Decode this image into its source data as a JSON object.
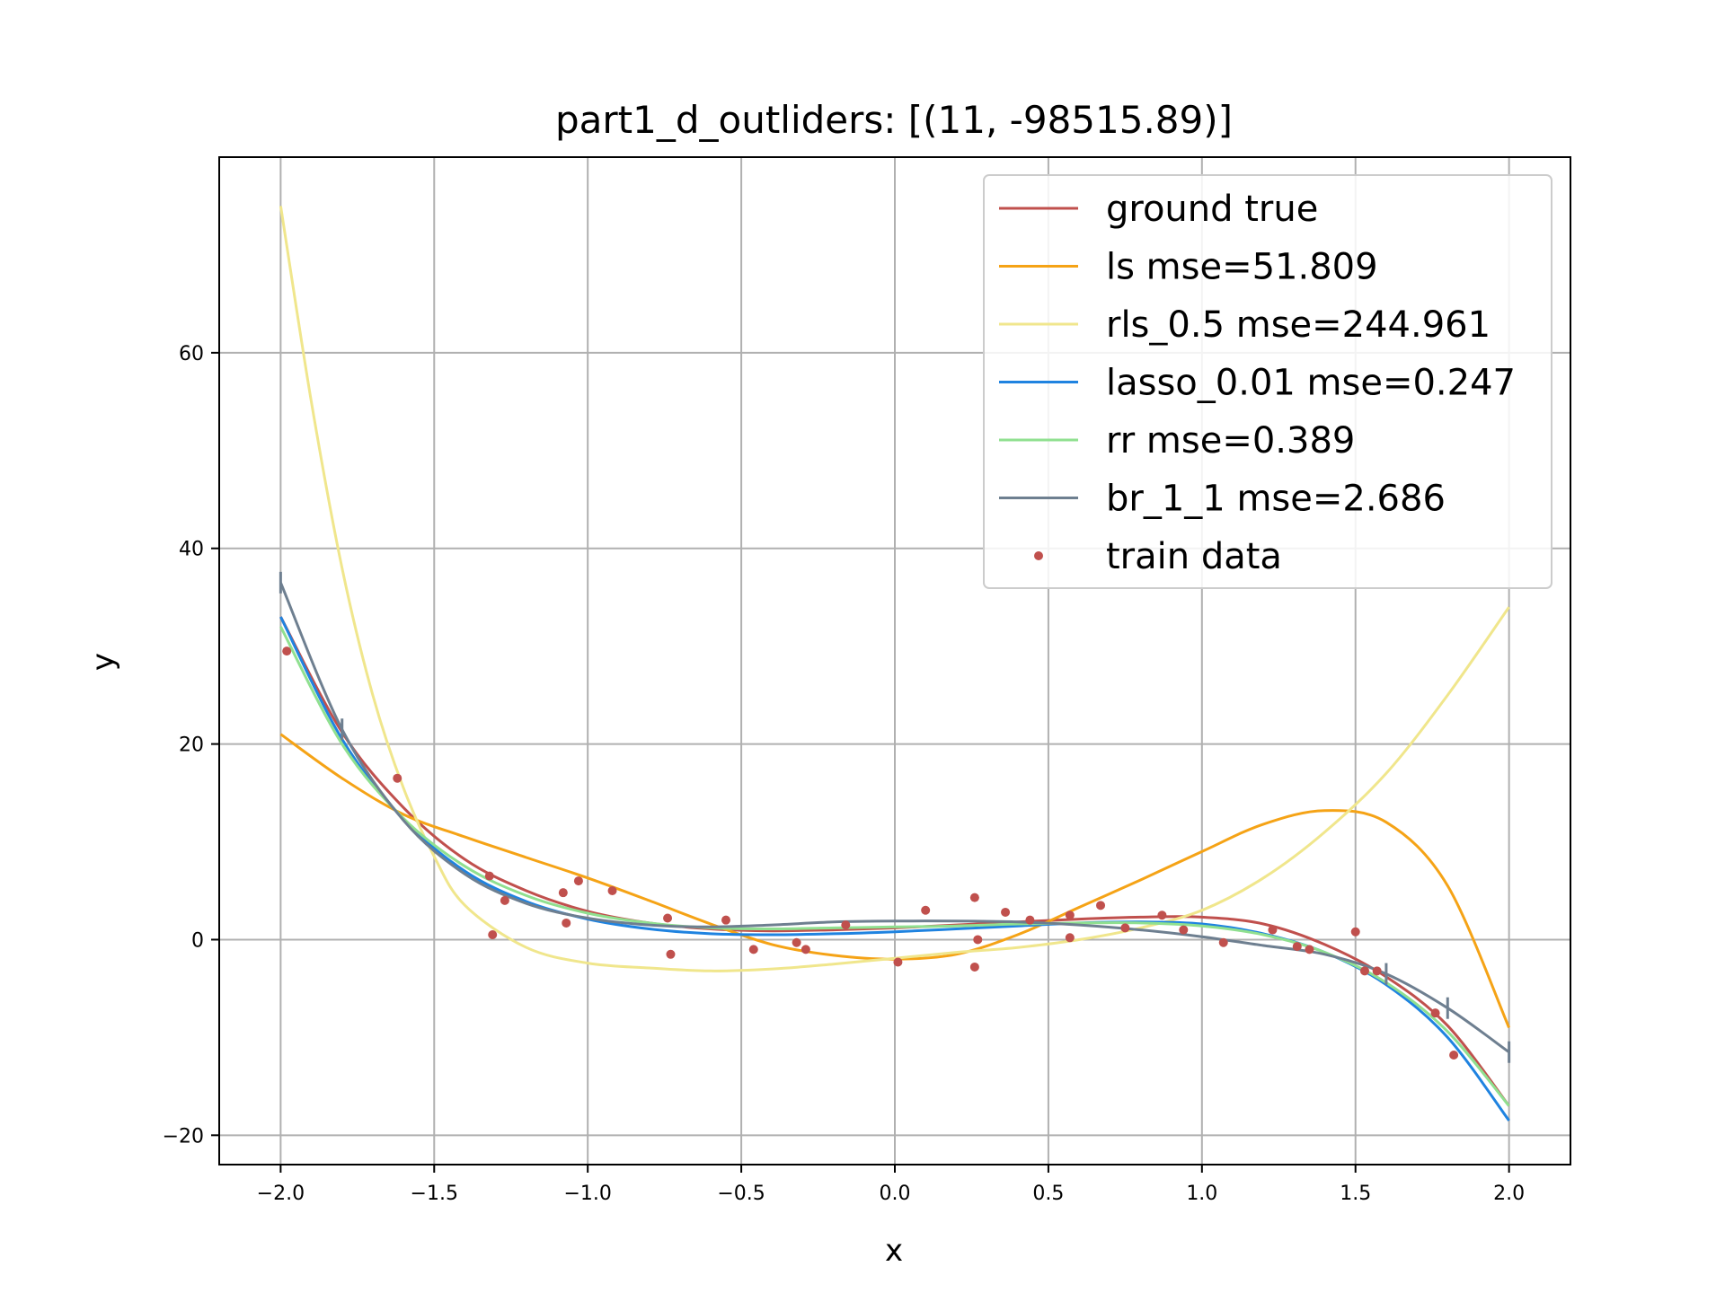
{
  "chart_data": {
    "type": "line",
    "title": "part1_d_outliders: [(11, -98515.89)]",
    "xlabel": "x",
    "ylabel": "y",
    "xlim": [
      -2.2,
      2.2
    ],
    "ylim": [
      -23,
      80
    ],
    "xticks": [
      -2.0,
      -1.5,
      -1.0,
      -0.5,
      0.0,
      0.5,
      1.0,
      1.5,
      2.0
    ],
    "xtick_labels": [
      "−2.0",
      "−1.5",
      "−1.0",
      "−0.5",
      "0.0",
      "0.5",
      "1.0",
      "1.5",
      "2.0"
    ],
    "yticks": [
      -20,
      0,
      20,
      40,
      60
    ],
    "ytick_labels": [
      "−20",
      "0",
      "20",
      "40",
      "60"
    ],
    "grid": true,
    "legend_position": "top-right",
    "series": [
      {
        "name": "ground true",
        "color": "#c0504d",
        "x": [
          -2.0,
          -1.8,
          -1.6,
          -1.4,
          -1.2,
          -1.0,
          -0.8,
          -0.6,
          -0.4,
          -0.2,
          0.0,
          0.2,
          0.4,
          0.6,
          0.8,
          1.0,
          1.2,
          1.4,
          1.6,
          1.8,
          2.0
        ],
        "y": [
          33.0,
          21.2,
          13.5,
          8.2,
          5.0,
          2.9,
          1.7,
          1.1,
          0.9,
          1.0,
          1.2,
          1.5,
          1.8,
          2.1,
          2.3,
          2.3,
          1.6,
          -0.5,
          -3.8,
          -8.8,
          -17.0
        ]
      },
      {
        "name": "ls mse=51.809",
        "color": "#f5a316",
        "x": [
          -2.0,
          -1.8,
          -1.6,
          -1.4,
          -1.2,
          -1.0,
          -0.8,
          -0.6,
          -0.4,
          -0.2,
          0.0,
          0.2,
          0.4,
          0.6,
          0.8,
          1.0,
          1.2,
          1.4,
          1.6,
          1.8,
          2.0
        ],
        "y": [
          21.0,
          16.5,
          12.8,
          10.5,
          8.4,
          6.3,
          4.0,
          1.6,
          -0.5,
          -1.6,
          -2.0,
          -1.5,
          0.5,
          3.3,
          6.1,
          9.0,
          11.8,
          13.2,
          12.0,
          5.5,
          -9.0
        ]
      },
      {
        "name": "rls_0.5 mse=244.961",
        "color": "#f0e68c",
        "x": [
          -2.0,
          -1.9,
          -1.8,
          -1.7,
          -1.6,
          -1.5,
          -1.4,
          -1.2,
          -1.0,
          -0.8,
          -0.6,
          -0.4,
          -0.2,
          0.0,
          0.2,
          0.4,
          0.6,
          0.8,
          1.0,
          1.2,
          1.4,
          1.6,
          1.8,
          2.0
        ],
        "y": [
          75.0,
          55.0,
          38.0,
          25.0,
          15.5,
          8.5,
          3.5,
          -0.8,
          -2.4,
          -2.9,
          -3.2,
          -3.0,
          -2.5,
          -1.9,
          -1.3,
          -0.8,
          0.0,
          1.2,
          3.0,
          6.3,
          11.0,
          17.0,
          25.0,
          34.0
        ]
      },
      {
        "name": "lasso_0.01 mse=0.247",
        "color": "#1f83e0",
        "x": [
          -2.0,
          -1.8,
          -1.6,
          -1.4,
          -1.2,
          -1.0,
          -0.8,
          -0.6,
          -0.4,
          -0.2,
          0.0,
          0.2,
          0.4,
          0.6,
          0.8,
          1.0,
          1.2,
          1.4,
          1.6,
          1.8,
          2.0
        ],
        "y": [
          33.0,
          20.5,
          12.3,
          7.0,
          3.9,
          2.1,
          1.1,
          0.6,
          0.5,
          0.6,
          0.8,
          1.1,
          1.4,
          1.7,
          1.8,
          1.6,
          0.6,
          -1.3,
          -4.6,
          -10.0,
          -18.5
        ]
      },
      {
        "name": "rr mse=0.389",
        "color": "#90e090",
        "x": [
          -2.0,
          -1.8,
          -1.6,
          -1.4,
          -1.2,
          -1.0,
          -0.8,
          -0.6,
          -0.4,
          -0.2,
          0.0,
          0.2,
          0.4,
          0.6,
          0.8,
          1.0,
          1.2,
          1.4,
          1.6,
          1.8,
          2.0
        ],
        "y": [
          32.0,
          20.0,
          12.4,
          7.5,
          4.5,
          2.7,
          1.7,
          1.2,
          1.1,
          1.2,
          1.3,
          1.4,
          1.6,
          1.7,
          1.7,
          1.4,
          0.5,
          -1.3,
          -4.4,
          -9.4,
          -17.0
        ]
      },
      {
        "name": "br_1_1 mse=2.686",
        "color": "#6e7f90",
        "x": [
          -2.0,
          -1.8,
          -1.6,
          -1.4,
          -1.2,
          -1.0,
          -0.8,
          -0.6,
          -0.4,
          -0.2,
          0.0,
          0.2,
          0.4,
          0.6,
          0.8,
          1.0,
          1.2,
          1.4,
          1.6,
          1.8,
          2.0
        ],
        "y": [
          36.5,
          21.5,
          12.2,
          6.7,
          3.7,
          2.2,
          1.5,
          1.3,
          1.5,
          1.8,
          1.9,
          1.9,
          1.8,
          1.5,
          1.0,
          0.3,
          -0.6,
          -1.5,
          -3.5,
          -7.0,
          -11.5
        ]
      }
    ],
    "scatter": {
      "name": "train data",
      "color": "#c0504d",
      "x": [
        -1.98,
        -1.62,
        -1.32,
        -1.31,
        -1.27,
        -1.08,
        -1.07,
        -1.03,
        -0.92,
        -0.74,
        -0.73,
        -0.55,
        -0.46,
        -0.32,
        -0.29,
        -0.16,
        0.01,
        0.1,
        0.26,
        0.26,
        0.27,
        0.36,
        0.44,
        0.57,
        0.57,
        0.67,
        0.75,
        0.87,
        0.94,
        1.07,
        1.23,
        1.31,
        1.35,
        1.5,
        1.53,
        1.57,
        1.76,
        1.82
      ],
      "y": [
        29.5,
        16.5,
        6.5,
        0.5,
        4.0,
        4.8,
        1.7,
        6.0,
        5.0,
        2.2,
        -1.5,
        2.0,
        -1.0,
        -0.3,
        -1.0,
        1.5,
        -2.3,
        3.0,
        4.3,
        -2.8,
        0.0,
        2.8,
        2.0,
        2.5,
        0.2,
        3.5,
        1.2,
        2.5,
        1.0,
        -0.3,
        1.0,
        -0.7,
        -1.0,
        0.8,
        -3.2,
        -3.2,
        -7.5,
        -11.8
      ]
    }
  },
  "colors": {
    "axes": "#000000",
    "grid": "#b0b0b0",
    "legend_border": "#cccccc"
  }
}
